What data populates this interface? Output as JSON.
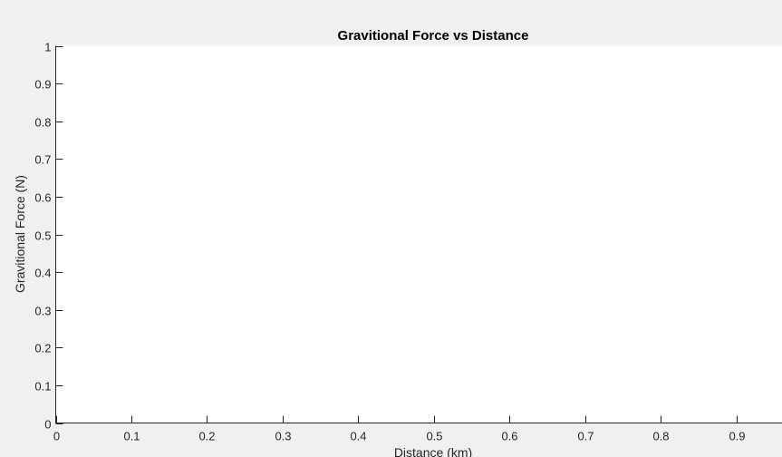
{
  "colors": {
    "figure_background": "#f0f0f0",
    "axes_background": "#ffffff",
    "axis_color": "#262626",
    "title_color": "#000000"
  },
  "chart_data": {
    "type": "line",
    "title": "Gravitional Force vs Distance",
    "xlabel": "Distance (km)",
    "ylabel": "Gravitional Force (N)",
    "xlim": [
      0,
      0.96
    ],
    "ylim": [
      0,
      1
    ],
    "xticks": [
      0,
      0.1,
      0.2,
      0.3,
      0.4,
      0.5,
      0.6,
      0.7,
      0.8,
      0.9
    ],
    "xtick_labels": [
      "0",
      "0.1",
      "0.2",
      "0.3",
      "0.4",
      "0.5",
      "0.6",
      "0.7",
      "0.8",
      "0.9"
    ],
    "yticks": [
      0,
      0.1,
      0.2,
      0.3,
      0.4,
      0.5,
      0.6,
      0.7,
      0.8,
      0.9,
      1
    ],
    "ytick_labels": [
      "0",
      "0.1",
      "0.2",
      "0.3",
      "0.4",
      "0.5",
      "0.6",
      "0.7",
      "0.8",
      "0.9",
      "1"
    ],
    "grid": false,
    "series": []
  }
}
